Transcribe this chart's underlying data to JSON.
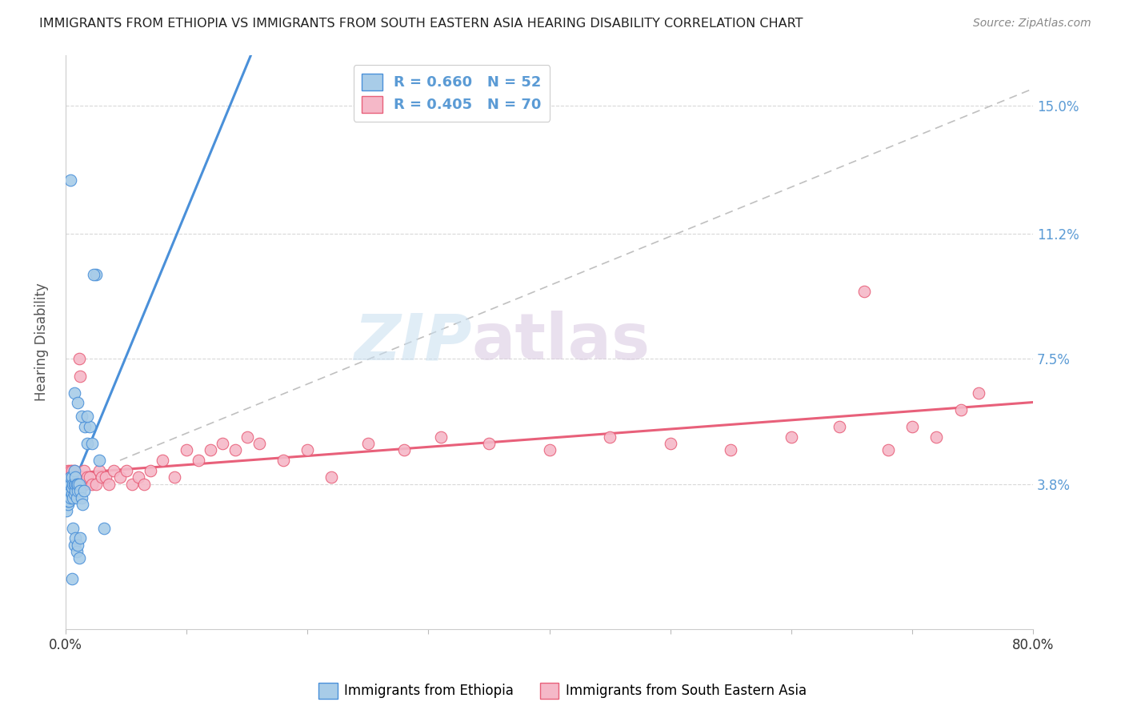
{
  "title": "IMMIGRANTS FROM ETHIOPIA VS IMMIGRANTS FROM SOUTH EASTERN ASIA HEARING DISABILITY CORRELATION CHART",
  "source": "Source: ZipAtlas.com",
  "ylabel": "Hearing Disability",
  "ytick_labels": [
    "3.8%",
    "7.5%",
    "11.2%",
    "15.0%"
  ],
  "ytick_values": [
    0.038,
    0.075,
    0.112,
    0.15
  ],
  "xlim": [
    0.0,
    0.8
  ],
  "ylim": [
    -0.005,
    0.165
  ],
  "legend_ethiopia": "R = 0.660   N = 52",
  "legend_sea": "R = 0.405   N = 70",
  "color_ethiopia": "#a8cce8",
  "color_sea": "#f5b8c8",
  "color_diag_line": "#c0c0c0",
  "color_fit_ethiopia": "#4a90d9",
  "color_fit_sea": "#e8607a",
  "watermark_zip": "ZIP",
  "watermark_atlas": "atlas",
  "eth_x": [
    0.001,
    0.001,
    0.002,
    0.002,
    0.002,
    0.003,
    0.003,
    0.003,
    0.004,
    0.004,
    0.004,
    0.005,
    0.005,
    0.005,
    0.006,
    0.006,
    0.007,
    0.007,
    0.007,
    0.008,
    0.008,
    0.008,
    0.009,
    0.009,
    0.01,
    0.01,
    0.011,
    0.012,
    0.013,
    0.014,
    0.015,
    0.016,
    0.018,
    0.02,
    0.022,
    0.025,
    0.028,
    0.032,
    0.007,
    0.01,
    0.013,
    0.018,
    0.023,
    0.006,
    0.007,
    0.008,
    0.009,
    0.01,
    0.011,
    0.012,
    0.004,
    0.005
  ],
  "eth_y": [
    0.03,
    0.035,
    0.032,
    0.038,
    0.033,
    0.036,
    0.033,
    0.038,
    0.034,
    0.038,
    0.04,
    0.035,
    0.037,
    0.04,
    0.034,
    0.038,
    0.035,
    0.038,
    0.042,
    0.036,
    0.038,
    0.04,
    0.034,
    0.038,
    0.036,
    0.038,
    0.038,
    0.036,
    0.034,
    0.032,
    0.036,
    0.055,
    0.05,
    0.055,
    0.05,
    0.1,
    0.045,
    0.025,
    0.065,
    0.062,
    0.058,
    0.058,
    0.1,
    0.025,
    0.02,
    0.022,
    0.018,
    0.02,
    0.016,
    0.022,
    0.128,
    0.01
  ],
  "sea_x": [
    0.001,
    0.001,
    0.002,
    0.002,
    0.002,
    0.003,
    0.003,
    0.003,
    0.004,
    0.004,
    0.004,
    0.005,
    0.005,
    0.005,
    0.006,
    0.006,
    0.007,
    0.007,
    0.008,
    0.008,
    0.009,
    0.01,
    0.011,
    0.012,
    0.014,
    0.015,
    0.016,
    0.018,
    0.02,
    0.022,
    0.025,
    0.028,
    0.03,
    0.033,
    0.036,
    0.04,
    0.045,
    0.05,
    0.055,
    0.06,
    0.065,
    0.07,
    0.08,
    0.09,
    0.1,
    0.11,
    0.12,
    0.13,
    0.14,
    0.15,
    0.16,
    0.18,
    0.2,
    0.22,
    0.25,
    0.28,
    0.31,
    0.35,
    0.4,
    0.45,
    0.5,
    0.55,
    0.6,
    0.64,
    0.66,
    0.68,
    0.7,
    0.72,
    0.74,
    0.755
  ],
  "sea_y": [
    0.038,
    0.04,
    0.036,
    0.04,
    0.042,
    0.038,
    0.04,
    0.036,
    0.038,
    0.042,
    0.04,
    0.038,
    0.042,
    0.04,
    0.036,
    0.04,
    0.038,
    0.042,
    0.038,
    0.04,
    0.038,
    0.04,
    0.075,
    0.07,
    0.04,
    0.042,
    0.038,
    0.04,
    0.04,
    0.038,
    0.038,
    0.042,
    0.04,
    0.04,
    0.038,
    0.042,
    0.04,
    0.042,
    0.038,
    0.04,
    0.038,
    0.042,
    0.045,
    0.04,
    0.048,
    0.045,
    0.048,
    0.05,
    0.048,
    0.052,
    0.05,
    0.045,
    0.048,
    0.04,
    0.05,
    0.048,
    0.052,
    0.05,
    0.048,
    0.052,
    0.05,
    0.048,
    0.052,
    0.055,
    0.095,
    0.048,
    0.055,
    0.052,
    0.06,
    0.065
  ]
}
